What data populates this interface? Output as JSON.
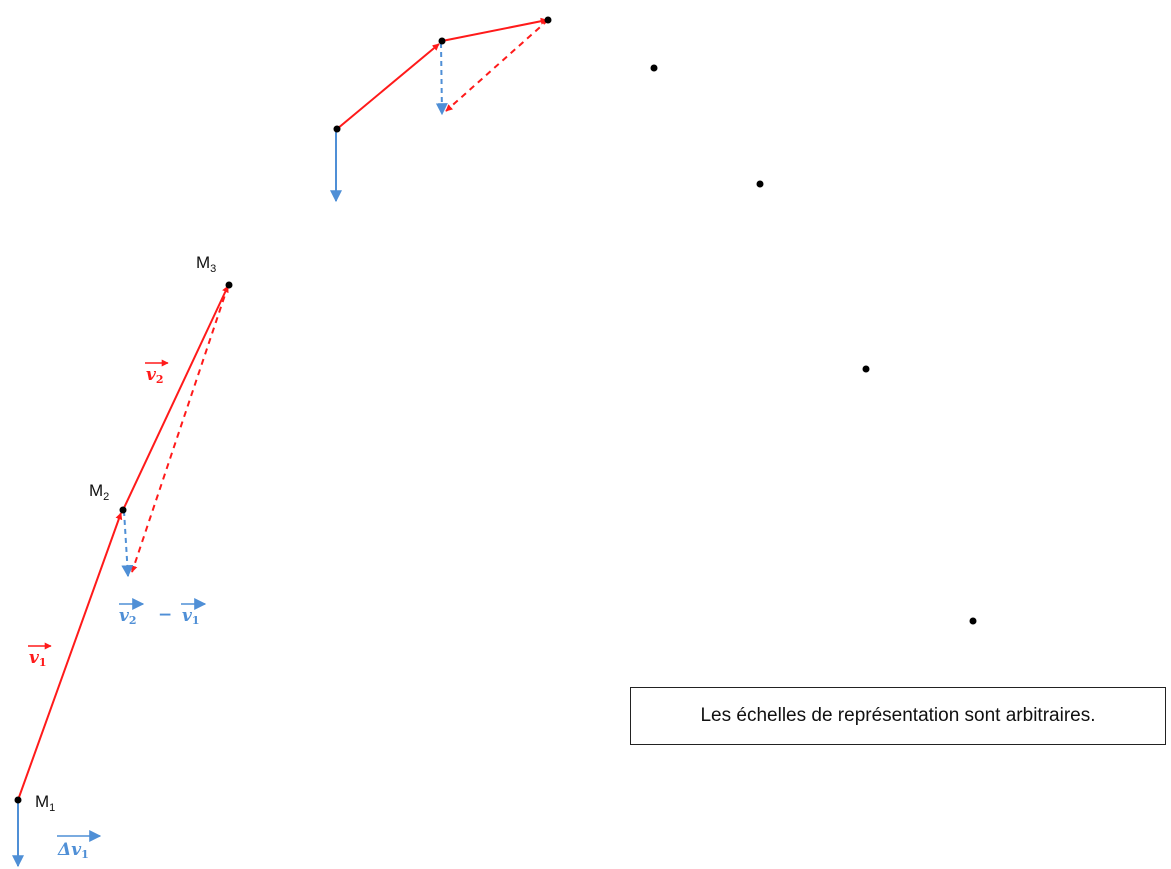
{
  "colors": {
    "velocity": "#ff1a1a",
    "delta": "#4f8fd6",
    "point": "#000000"
  },
  "points": {
    "m1": {
      "base": "M",
      "sub": "1"
    },
    "m2": {
      "base": "M",
      "sub": "2"
    },
    "m3": {
      "base": "M",
      "sub": "3"
    }
  },
  "vectors": {
    "v1": {
      "base": "v",
      "sub": "1"
    },
    "v2": {
      "base": "v",
      "sub": "2"
    },
    "delta_v1": {
      "base": "Δv",
      "sub": "1"
    },
    "difference": {
      "left": "v",
      "left_sub": "2",
      "operator": "−",
      "right": "v",
      "right_sub": "1"
    }
  },
  "note": {
    "text": "Les échelles de représentation sont arbitraires."
  }
}
